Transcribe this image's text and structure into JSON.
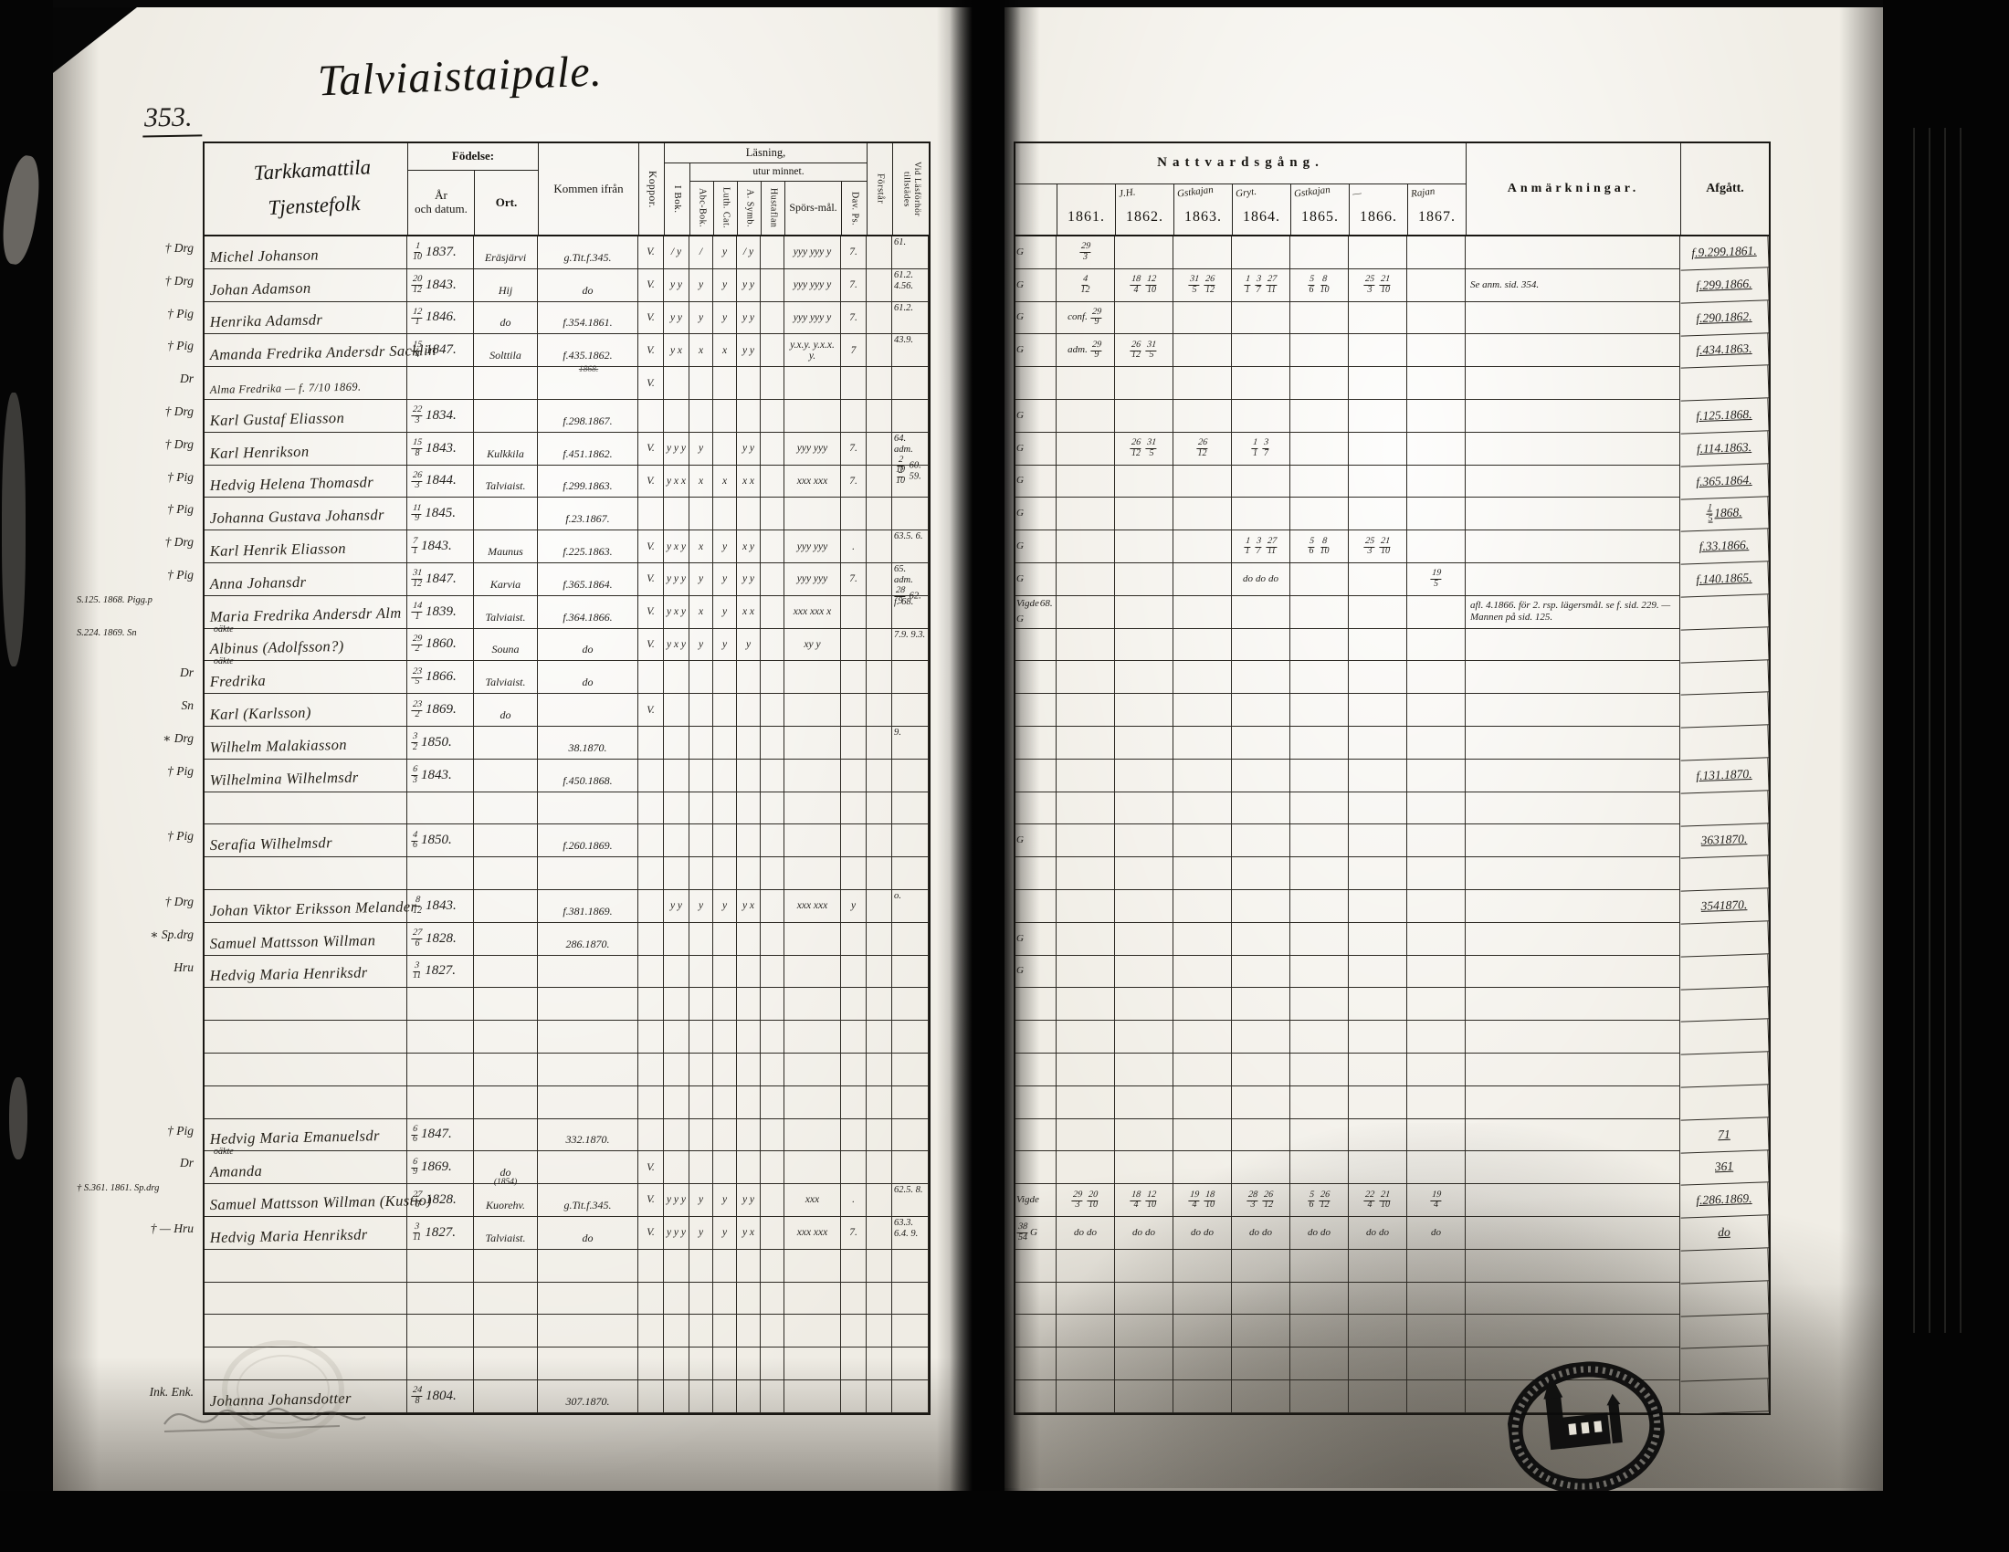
{
  "page": {
    "number": "353.",
    "title": "Talviaistaipale."
  },
  "left_header": {
    "name_line1": "Tarkkamattila",
    "name_line2": "Tjenstefolk",
    "fodelse": "Födelse:",
    "ar": "År",
    "ar2": "och datum.",
    "ort": "Ort.",
    "kommen": "Kommen ifrån",
    "koppor": "Koppor.",
    "lasning": "Läsning,",
    "utur": "utur minnet.",
    "ibok": "I Bok.",
    "abc": "Abc-Bok.",
    "luth": "Luth. Cat.",
    "symb": "A. Symb.",
    "hust": "Hustaflan",
    "spors": "Spörs-mål.",
    "davps": "Dav. Ps.",
    "forstar": "Förstår",
    "tillst": "Vid Läsförhör tillstädes"
  },
  "right_header": {
    "natt": "Nattvardsgång.",
    "years": [
      "1861.",
      "1862.",
      "1863.",
      "1864.",
      "1865.",
      "1866.",
      "1867."
    ],
    "year_notes": [
      "",
      "J.H.",
      "Gstkajan",
      "Gryt.",
      "Gstkajan",
      "—",
      "Rajan"
    ],
    "anm": "Anmärkningar.",
    "afgatt": "Afgått."
  },
  "rows": [
    {
      "m": "† Drg",
      "name": "Michel Johanson",
      "bf": "1/10",
      "by": "1837.",
      "ort": "Eräsjärvi",
      "kom": "g.Tit.f.345.",
      "kop": "V.",
      "ib": "/ y",
      "ab": "/",
      "lu": "y",
      "sy": "/ y",
      "hu": "",
      "sp": "yyy yyy y",
      "dp": "7.",
      "fo": "",
      "ti": "61.",
      "g": "G",
      "y1": "29/3",
      "af": "f.9.299. 1861."
    },
    {
      "m": "† Drg",
      "name": "Johan Adamson",
      "bf": "20/12",
      "by": "1843.",
      "ort": "Hij",
      "kom": "do",
      "kop": "V.",
      "ib": "y y",
      "ab": "y",
      "lu": "y",
      "sy": "y y",
      "sp": "yyy yyy y",
      "dp": "7.",
      "ti": "61.2. 4.56.",
      "g": "G",
      "y1": "4/12",
      "y2": "18/4 12/10",
      "y3": "31/5 26/12",
      "y4": "1/1 3/7 27/11",
      "y5": "5/6 8/10",
      "y6": "25/3 21/10",
      "anm": "Se anm. sid. 354.",
      "af": "f.299.1866."
    },
    {
      "m": "† Pig",
      "name": "Henrika Adamsdr",
      "bf": "12/1",
      "by": "1846.",
      "ort": "do",
      "kom": "f.354.1861.",
      "kop": "V.",
      "ib": "y y",
      "ab": "y",
      "lu": "y",
      "sy": "y y",
      "sp": "yyy yyy y",
      "dp": "7.",
      "ti": "61.2.",
      "g": "G",
      "y1": "conf. 29/9",
      "af": "f.290.1862."
    },
    {
      "m": "† Pig",
      "name": "Amanda Fredrika Andersdr Sacklin",
      "bf": "15/4",
      "by": "1847.",
      "ort": "Solttila",
      "kom": "f.435.1862.",
      "kn": "1868.",
      "kop": "V.",
      "ib": "y x",
      "ab": "x",
      "lu": "x",
      "sy": "y y",
      "sp": "y.x.y. y.x.x. y.",
      "dp": "7",
      "ti": "43.9.",
      "g": "G",
      "y1": "adm. 29/9",
      "y2": "26/12 31/5",
      "af": "f.434.1863."
    },
    {
      "m": "Dr",
      "name": "Alma Fredrika — f. 7/10 1869.",
      "sm": 1,
      "kop": "V."
    },
    {
      "m": "† Drg",
      "name": "Karl Gustaf Eliasson",
      "bf": "22/3",
      "by": "1834.",
      "kom": "f.298.1867.",
      "g": "G",
      "af": "f.125.1868."
    },
    {
      "m": "† Drg",
      "name": "Karl Henrikson",
      "bf": "15/8",
      "by": "1843.",
      "ort": "Kulkkila",
      "kom": "f.451.1862.",
      "kop": "V.",
      "ib": "y y y",
      "ab": "y",
      "lu": "",
      "sy": "y y",
      "sp": "yyy yyy",
      "dp": "7.",
      "ti": "64. adm. 2/10 60.",
      "g": "G",
      "y2": "26/12 31/5",
      "y3": "26/12",
      "y4": "1/1 3/7",
      "af": "f.114.1863."
    },
    {
      "m": "† Pig",
      "name": "Hedvig Helena Thomasdr",
      "bf": "26/3",
      "by": "1844.",
      "ort": "Talviaist.",
      "kom": "f.299.1863.",
      "kop": "V.",
      "ib": "y x x",
      "ab": "x",
      "lu": "x",
      "sy": "x x",
      "sp": "xxx xxx",
      "dp": "7.",
      "ti": "2/10 59.",
      "g": "G",
      "af": "f.365.1864."
    },
    {
      "m": "† Pig",
      "name": "Johanna Gustava Johansdr",
      "bf": "11/9",
      "by": "1845.",
      "kom": "f.23.1867.",
      "g": "G",
      "af": "1/5 1868."
    },
    {
      "m": "† Drg",
      "name": "Karl Henrik Eliasson",
      "bf": "7/1",
      "by": "1843.",
      "ort": "Maunus",
      "kom": "f.225.1863.",
      "kop": "V.",
      "ib": "y x y",
      "ab": "x",
      "lu": "y",
      "sy": "x y",
      "sp": "yyy yyy",
      "dp": ".",
      "ti": "63.5. 6.",
      "g": "G",
      "y4": "1/1 3/7 27/11",
      "y5": "5/6 8/10",
      "y6": "25/3 21/10",
      "af": "f.33.1866."
    },
    {
      "m": "† Pig",
      "name": "Anna Johansdr",
      "bf": "31/12",
      "by": "1847.",
      "ort": "Karvia",
      "kom": "f.365.1864.",
      "kop": "V.",
      "ib": "y y y",
      "ab": "y",
      "lu": "y",
      "sy": "y y",
      "sp": "yyy yyy",
      "dp": "7.",
      "ti": "65. adm. 28/9 62.",
      "g": "G",
      "y4": "do do do",
      "y7": "19/5",
      "af": "f.140.1865."
    },
    {
      "m": "S.125. 1868. Pigg.p",
      "name": "Maria Fredrika Andersdr Alm",
      "bf": "14/1",
      "by": "1839.",
      "ort": "Talviaist.",
      "kom": "f.364.1866.",
      "kop": "V.",
      "ib": "y x y",
      "ab": "x",
      "lu": "y",
      "sy": "x x",
      "sp": "xxx xxx x",
      "ti": "f. 68.",
      "g": "Vigde 68. G",
      "anm": "afl. 4.1866. för 2. rsp. lägersmål. se f. sid. 229. — Mannen på sid. 125."
    },
    {
      "m": "S.224. 1869. Sn",
      "nn": "oäkte",
      "name": "Albinus (Adolfsson?)",
      "bf": "29/2",
      "by": "1860.",
      "ort": "Souna",
      "kom": "do",
      "kop": "V.",
      "ib": "y x y",
      "ab": "y",
      "lu": "y",
      "sy": "y",
      "sp": "xy y",
      "ti": "7.9. 9.3."
    },
    {
      "m": "Dr",
      "nn": "oäkte",
      "name": "Fredrika",
      "bf": "23/5",
      "by": "1866.",
      "ort": "Talviaist.",
      "kom": "do"
    },
    {
      "m": "Sn",
      "name": "Karl (Karlsson)",
      "bf": "23/2",
      "by": "1869.",
      "ort": "do",
      "kop": "V."
    },
    {
      "m": "∗ Drg",
      "name": "Wilhelm Malakiasson",
      "bf": "3/2",
      "by": "1850.",
      "kom": "38.1870.",
      "ti": "9."
    },
    {
      "m": "† Pig",
      "name": "Wilhelmina Wilhelmsdr",
      "bf": "6/3",
      "by": "1843.",
      "kom": "f.450.1868.",
      "af": "f.131.1870."
    },
    {},
    {
      "m": "† Pig",
      "name": "Serafia Wilhelmsdr",
      "bf": "4/6",
      "by": "1850.",
      "kom": "f.260.1869.",
      "g": "G",
      "af": "363 1870."
    },
    {},
    {
      "m": "† Drg",
      "name": "Johan Viktor Eriksson Melander",
      "bf": "8/12",
      "by": "1843.",
      "kom": "f.381.1869.",
      "ib": "y y",
      "ab": "y",
      "lu": "y",
      "sy": "y x",
      "sp": "xxx xxx",
      "dp": "y",
      "ti": "o.",
      "af": "354 1870."
    },
    {
      "m": "∗ Sp.drg",
      "name": "Samuel Mattsson Willman",
      "bf": "27/6",
      "by": "1828.",
      "kom": "286.1870.",
      "g": "G"
    },
    {
      "m": "Hru",
      "name": "Hedvig Maria Henriksdr",
      "bf": "3/11",
      "by": "1827.",
      "g": "G"
    },
    {},
    {},
    {},
    {},
    {
      "m": "† Pig",
      "name": "Hedvig Maria Emanuelsdr",
      "bf": "6/6",
      "by": "1847.",
      "kom": "332.1870.",
      "af": "71"
    },
    {
      "m": "Dr",
      "nn": "oäkte",
      "name": "Amanda",
      "bf": "6/9",
      "by": "1869.",
      "ort": "do",
      "kop": "V.",
      "af": "361"
    },
    {
      "m": "† S.361. 1861. Sp.drg",
      "name": "Samuel Mattsson Willman (Kustio)",
      "bf": "27/6",
      "by": "1828.",
      "ort": "Kuorehv.",
      "on": "(1854)",
      "kom": "g.Tit.f.345.",
      "kop": "V.",
      "ib": "y y y",
      "ab": "y",
      "lu": "y",
      "sy": "y y",
      "sp": "xxx",
      "dp": ".",
      "ti": "62.5. 8.",
      "g": "Vigde",
      "y1": "29/3 20/10",
      "y2": "18/4 12/10",
      "y3": "19/4 18/10",
      "y4": "28/3 26/12",
      "y5": "5/6 26/12",
      "y6": "22/4 21/10",
      "y7": "19/4",
      "af": "f.286.1869."
    },
    {
      "m": "† — Hru",
      "name": "Hedvig Maria Henriksdr",
      "bf": "3/11",
      "by": "1827.",
      "ort": "Talviaist.",
      "kom": "do",
      "kop": "V.",
      "ib": "y y y",
      "ab": "y",
      "lu": "y",
      "sy": "y x",
      "sp": "xxx xxx",
      "dp": "7.",
      "ti": "63.3. 6.4. 9.",
      "g": "38/54 G",
      "y1": "do do",
      "y2": "do do",
      "y3": "do do",
      "y4": "do do",
      "y5": "do do",
      "y6": "do do",
      "y7": "do",
      "af": "do"
    },
    {},
    {},
    {},
    {},
    {
      "m": "Ink. Enk.",
      "name": "Johanna Johansdotter",
      "bf": "24/8",
      "by": "1804.",
      "kom": "307.1870."
    }
  ]
}
